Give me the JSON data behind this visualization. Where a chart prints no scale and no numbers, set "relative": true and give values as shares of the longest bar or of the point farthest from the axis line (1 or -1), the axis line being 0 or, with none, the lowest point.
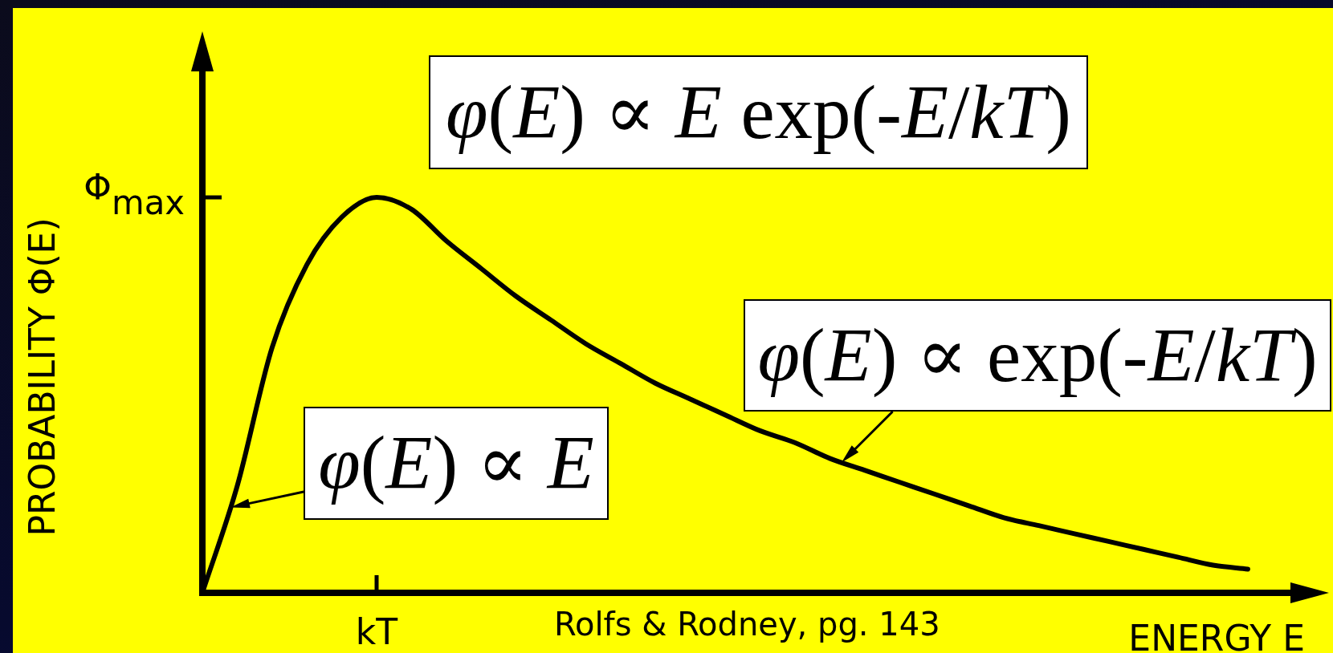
{
  "chart_data": {
    "type": "line",
    "xlabel": "ENERGY E",
    "ylabel": "PROBABILITY Φ(E)",
    "categories": [
      null,
      null,
      null,
      null,
      null,
      null,
      null,
      null,
      null,
      null,
      null,
      null,
      null,
      null,
      null,
      null,
      null,
      null,
      null,
      null,
      null,
      null,
      null,
      null,
      null,
      null,
      null,
      null,
      null,
      null,
      null
    ],
    "series": [
      {
        "color": "#000000",
        "values": [
          0,
          0.27,
          0.62,
          0.83,
          0.95,
          1.0,
          0.97,
          0.89,
          0.82,
          0.75,
          0.69,
          0.63,
          0.58,
          0.53,
          0.49,
          0.45,
          0.41,
          0.38,
          0.34,
          0.31,
          0.28,
          0.25,
          0.22,
          0.19,
          0.17,
          0.15,
          0.13,
          0.11,
          0.09,
          0.07,
          0.06
        ]
      }
    ],
    "relative": true,
    "marker": "none",
    "annotations": [
      "Φ$_{max}$",
      "φ(E) ∝ E exp(-E/kT)",
      "φ(E) ∝ exp(-E/kT)",
      "φ(E) ∝ E",
      "kT",
      "Rolfs & Rodney, pg. 143"
    ]
  }
}
